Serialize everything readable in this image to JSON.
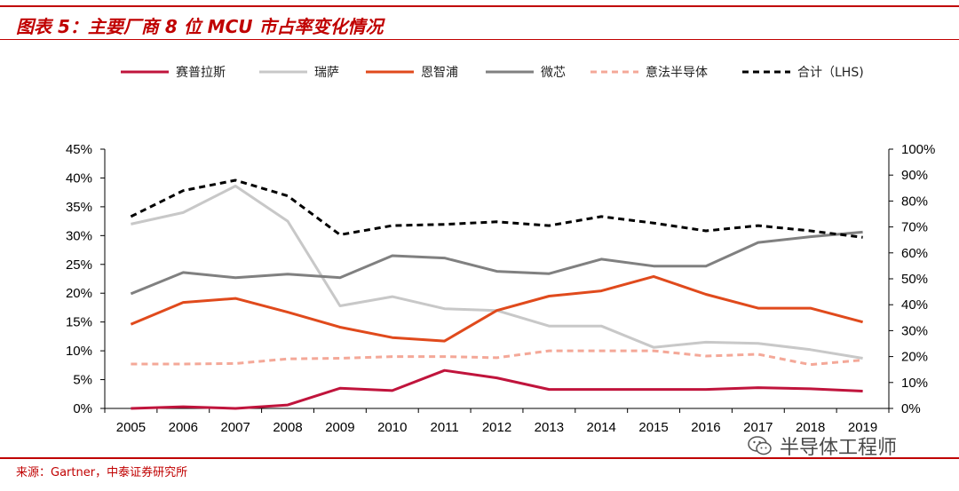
{
  "header": {
    "title": "图表 5：主要厂商 8 位 MCU 市占率变化情况"
  },
  "footer": {
    "source": "来源：Gartner，中泰证券研究所",
    "watermark": "半导体工程师"
  },
  "colors": {
    "accent": "#c00000"
  },
  "chart_data": {
    "type": "line",
    "title": "",
    "xlabel": "",
    "ylabel": "",
    "categories": [
      "2005",
      "2006",
      "2007",
      "2008",
      "2009",
      "2010",
      "2011",
      "2012",
      "2013",
      "2014",
      "2015",
      "2016",
      "2017",
      "2018",
      "2019"
    ],
    "y_left": {
      "lim": [
        0,
        45
      ],
      "ticks": [
        0,
        5,
        10,
        15,
        20,
        25,
        30,
        35,
        40,
        45
      ],
      "tick_labels": [
        "0%",
        "5%",
        "10%",
        "15%",
        "20%",
        "25%",
        "30%",
        "35%",
        "40%",
        "45%"
      ]
    },
    "y_right": {
      "lim": [
        0,
        100
      ],
      "ticks": [
        0,
        10,
        20,
        30,
        40,
        50,
        60,
        70,
        80,
        90,
        100
      ],
      "tick_labels": [
        "0%",
        "10%",
        "20%",
        "30%",
        "40%",
        "50%",
        "60%",
        "70%",
        "80%",
        "90%",
        "100%"
      ]
    },
    "grid": false,
    "legend_position": "top",
    "series": [
      {
        "name": "赛普拉斯",
        "axis": "left",
        "color": "#c0143c",
        "dash": "solid",
        "values": [
          0,
          0.3,
          0,
          0.6,
          3.5,
          3.1,
          6.6,
          5.3,
          3.3,
          3.3,
          3.3,
          3.3,
          3.6,
          3.4,
          3.0
        ]
      },
      {
        "name": "瑞萨",
        "axis": "left",
        "color": "#c8c8c8",
        "dash": "solid",
        "values": [
          32,
          34,
          38.6,
          32.5,
          17.8,
          19.4,
          17.3,
          17.0,
          14.3,
          14.3,
          10.6,
          11.5,
          11.3,
          10.2,
          8.7
        ]
      },
      {
        "name": "恩智浦",
        "axis": "left",
        "color": "#e04a1c",
        "dash": "solid",
        "values": [
          14.6,
          18.4,
          19.1,
          16.7,
          14.1,
          12.3,
          11.7,
          17.0,
          19.5,
          20.4,
          22.9,
          19.8,
          17.4,
          17.4,
          15.0
        ]
      },
      {
        "name": "微芯",
        "axis": "left",
        "color": "#808080",
        "dash": "solid",
        "values": [
          19.9,
          23.6,
          22.7,
          23.3,
          22.7,
          26.5,
          26.1,
          23.8,
          23.4,
          25.9,
          24.7,
          24.7,
          28.8,
          29.8,
          30.6
        ]
      },
      {
        "name": "意法半导体",
        "axis": "left",
        "color": "#f4a898",
        "dash": "dashed",
        "values": [
          7.7,
          7.7,
          7.8,
          8.6,
          8.7,
          9.0,
          9.0,
          8.8,
          10.0,
          10.0,
          10.0,
          9.1,
          9.4,
          7.6,
          8.4
        ]
      },
      {
        "name": "合计（LHS)",
        "axis": "right",
        "color": "#000000",
        "dash": "dashed",
        "values": [
          74,
          84,
          88,
          82,
          67,
          70.5,
          71,
          72,
          70.5,
          74,
          71.5,
          68.5,
          70.5,
          68.5,
          66
        ]
      }
    ]
  }
}
